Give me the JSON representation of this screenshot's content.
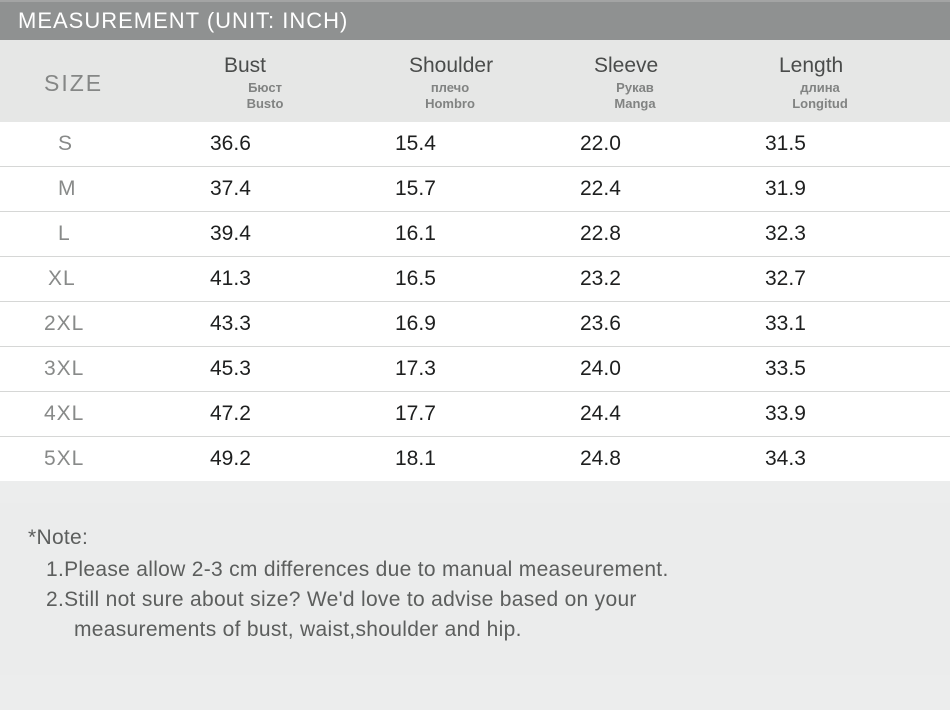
{
  "title": "MEASUREMENT (UNIT: INCH)",
  "columns": {
    "size": {
      "label": "SIZE"
    },
    "bust": {
      "label": "Bust",
      "sub1": "Бюст",
      "sub2": "Busto"
    },
    "shoulder": {
      "label": "Shoulder",
      "sub1": "плечо",
      "sub2": "Hombro"
    },
    "sleeve": {
      "label": "Sleeve",
      "sub1": "Рукав",
      "sub2": "Manga"
    },
    "length": {
      "label": "Length",
      "sub1": "длина",
      "sub2": "Longitud"
    }
  },
  "rows": [
    {
      "size": "S",
      "bust": "36.6",
      "shoulder": "15.4",
      "sleeve": "22.0",
      "length": "31.5"
    },
    {
      "size": "M",
      "bust": "37.4",
      "shoulder": "15.7",
      "sleeve": "22.4",
      "length": "31.9"
    },
    {
      "size": "L",
      "bust": "39.4",
      "shoulder": "16.1",
      "sleeve": "22.8",
      "length": "32.3"
    },
    {
      "size": "XL",
      "bust": "41.3",
      "shoulder": "16.5",
      "sleeve": "23.2",
      "length": "32.7"
    },
    {
      "size": "2XL",
      "bust": "43.3",
      "shoulder": "16.9",
      "sleeve": "23.6",
      "length": "33.1"
    },
    {
      "size": "3XL",
      "bust": "45.3",
      "shoulder": "17.3",
      "sleeve": "24.0",
      "length": "33.5"
    },
    {
      "size": "4XL",
      "bust": "47.2",
      "shoulder": "17.7",
      "sleeve": "24.4",
      "length": "33.9"
    },
    {
      "size": "5XL",
      "bust": "49.2",
      "shoulder": "18.1",
      "sleeve": "24.8",
      "length": "34.3"
    }
  ],
  "notes": {
    "title": "*Note:",
    "line1": "1.Please allow 2-3 cm differences due to manual measeurement.",
    "line2": "2.Still not sure about size? We'd love to advise based on your",
    "line2b": "measurements of bust, waist,shoulder and hip."
  },
  "style": {
    "titlebar_bg": "#8f9191",
    "titlebar_text": "#ffffff",
    "header_bg": "#e6e7e6",
    "header_text": "#4a4c4b",
    "size_text": "#888a89",
    "value_text": "#1e1f1f",
    "border_color": "#d6d7d6",
    "notes_bg": "#ebecec",
    "notes_text": "#5c5e5d",
    "font_size_title": 22,
    "font_size_header": 21,
    "font_size_cell": 21
  }
}
